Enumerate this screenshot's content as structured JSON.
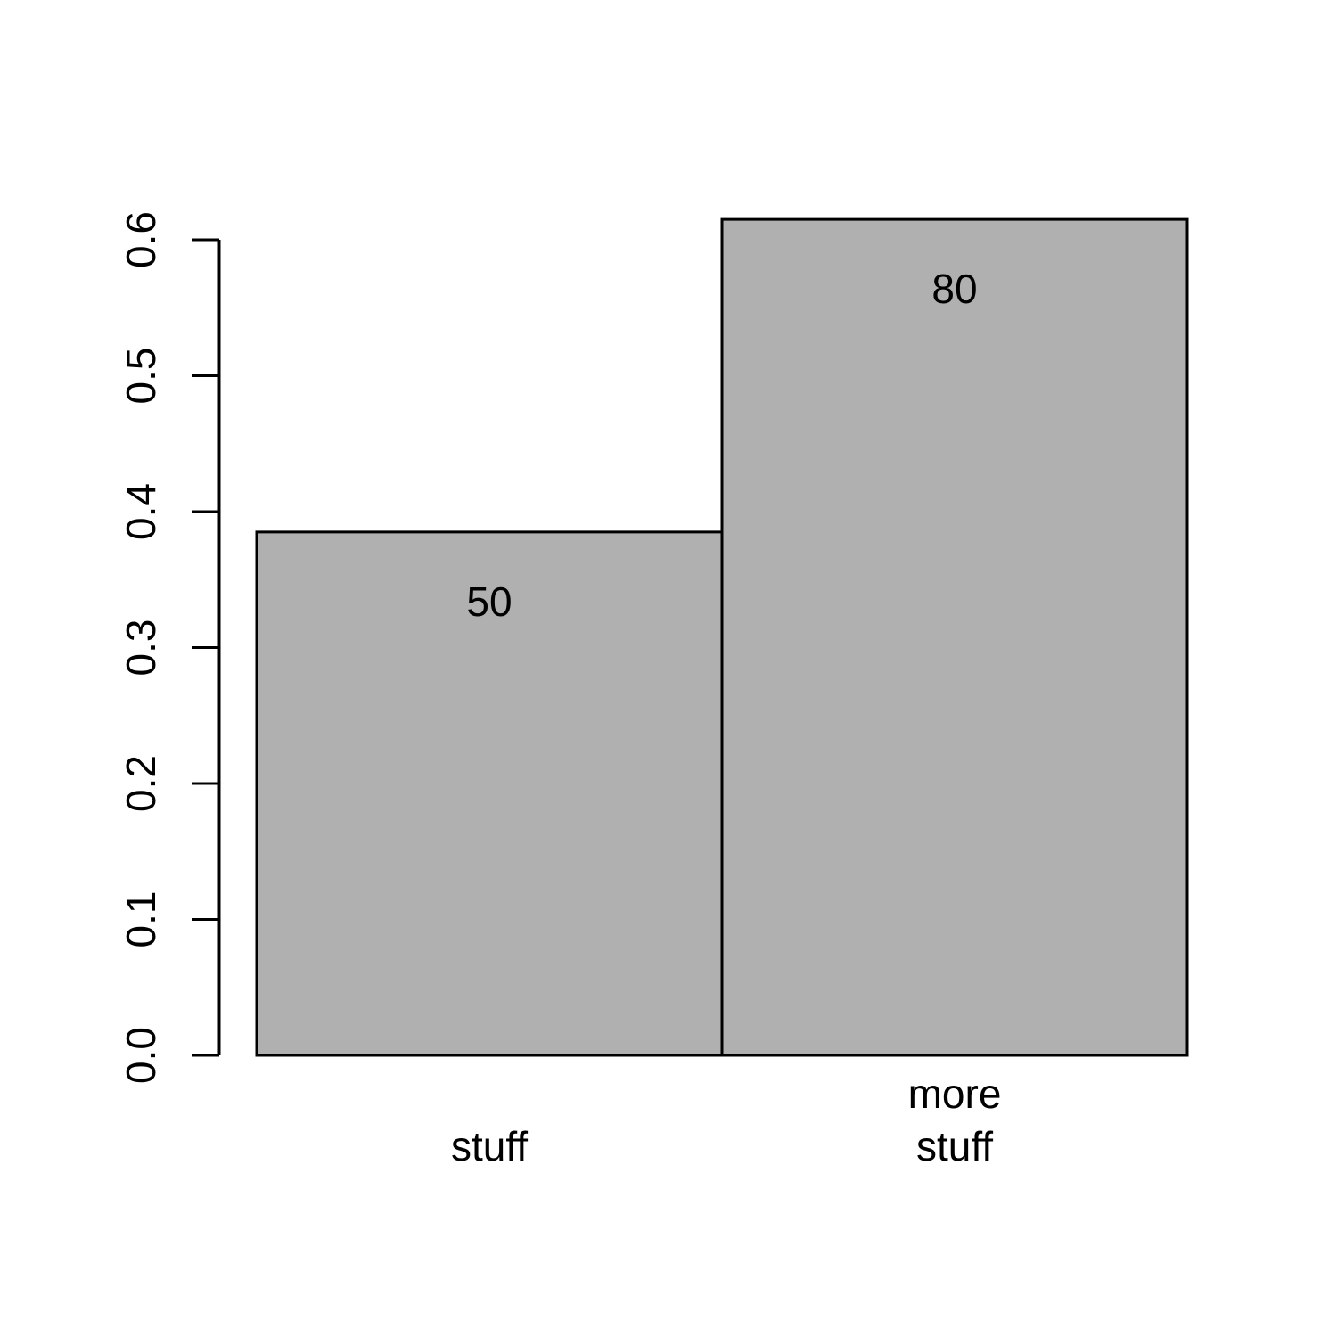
{
  "chart_data": {
    "type": "bar",
    "title": "",
    "xlabel": "",
    "ylabel": "",
    "categories": [
      [
        "stuff"
      ],
      [
        "more",
        "stuff"
      ]
    ],
    "values": [
      0.385,
      0.615
    ],
    "data_labels": [
      "50",
      "80"
    ],
    "ylim": [
      0,
      0.6
    ],
    "yticks": [
      0.0,
      0.1,
      0.2,
      0.3,
      0.4,
      0.5,
      0.6
    ],
    "ytick_labels": [
      "0.0",
      "0.1",
      "0.2",
      "0.3",
      "0.4",
      "0.5",
      "0.6"
    ],
    "grid": false,
    "legend": "none",
    "bar_color": "#b0b0b0",
    "bar_edge_color": "#000000"
  }
}
